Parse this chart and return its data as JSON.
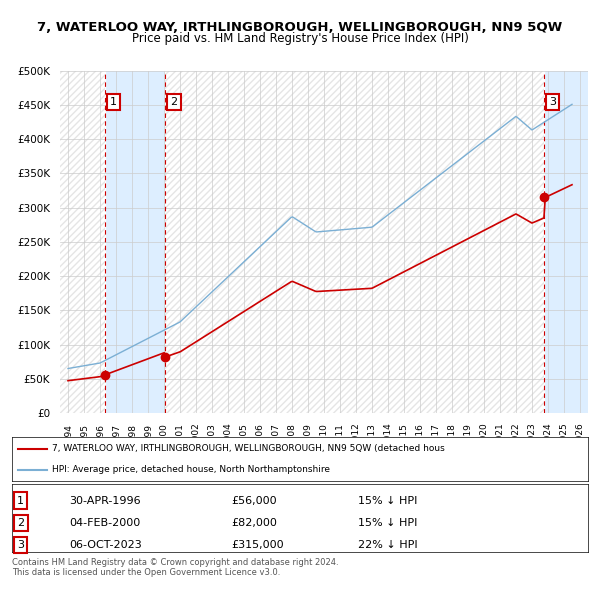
{
  "title": "7, WATERLOO WAY, IRTHLINGBOROUGH, WELLINGBOROUGH, NN9 5QW",
  "subtitle": "Price paid vs. HM Land Registry's House Price Index (HPI)",
  "legend_line1": "7, WATERLOO WAY, IRTHLINGBOROUGH, WELLINGBOROUGH, NN9 5QW (detached hous",
  "legend_line2": "HPI: Average price, detached house, North Northamptonshire",
  "sales": [
    {
      "num": 1,
      "date_label": "30-APR-1996",
      "date_year": 1996.33,
      "price": 56000,
      "pct": "15%",
      "dir": "↓"
    },
    {
      "num": 2,
      "date_label": "04-FEB-2000",
      "date_year": 2000.09,
      "price": 82000,
      "pct": "15%",
      "dir": "↓"
    },
    {
      "num": 3,
      "date_label": "06-OCT-2023",
      "date_year": 2023.76,
      "price": 315000,
      "pct": "22%",
      "dir": "↓"
    }
  ],
  "footnote1": "Contains HM Land Registry data © Crown copyright and database right 2024.",
  "footnote2": "This data is licensed under the Open Government Licence v3.0.",
  "ylim": [
    0,
    500000
  ],
  "xlim": [
    1993.5,
    2026.5
  ],
  "yticks": [
    0,
    50000,
    100000,
    150000,
    200000,
    250000,
    300000,
    350000,
    400000,
    450000,
    500000
  ],
  "hpi_color": "#7bafd4",
  "price_color": "#cc0000",
  "bg_color": "#ffffff",
  "grid_color": "#cccccc",
  "shaded_color": "#ddeeff",
  "hatch_color": "#cccccc"
}
